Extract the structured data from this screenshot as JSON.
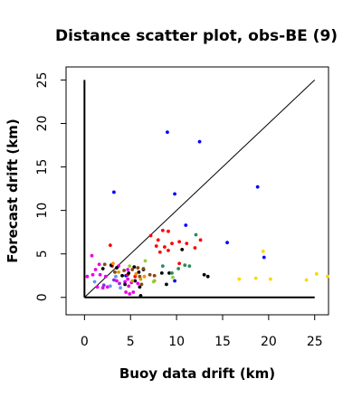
{
  "chart_data": {
    "type": "scatter",
    "title": "Distance scatter plot, obs-BE (9)",
    "xlabel": "Buoy data drift (km)",
    "ylabel": "Forecast drift (km)",
    "xlim": [
      -2,
      26.5
    ],
    "ylim": [
      -2,
      26.5
    ],
    "x_ticks": [
      0,
      5,
      10,
      15,
      20,
      25
    ],
    "y_ticks": [
      0,
      5,
      10,
      15,
      20,
      25
    ],
    "grid": false,
    "legend": "none",
    "reference_lines": [
      {
        "kind": "diagonal",
        "x": [
          0,
          25
        ],
        "y": [
          0,
          25
        ]
      },
      {
        "kind": "vertical",
        "x": [
          0,
          0
        ],
        "y": [
          0,
          25
        ]
      },
      {
        "kind": "horizontal",
        "x": [
          0,
          25
        ],
        "y": [
          0,
          0
        ]
      }
    ],
    "series": [
      {
        "color": "#0000ff",
        "points": [
          [
            9,
            19
          ],
          [
            12.5,
            17.9
          ],
          [
            3.2,
            12.1
          ],
          [
            9.8,
            11.9
          ],
          [
            18.8,
            12.7
          ],
          [
            11,
            8.3
          ],
          [
            15.5,
            6.3
          ],
          [
            19.5,
            4.6
          ],
          [
            9.8,
            1.9
          ],
          [
            4.5,
            2.5
          ]
        ]
      },
      {
        "color": "#ff0000",
        "points": [
          [
            2.8,
            6
          ],
          [
            7.2,
            7.1
          ],
          [
            8,
            6.6
          ],
          [
            8.5,
            7.7
          ],
          [
            9.1,
            7.6
          ],
          [
            7.8,
            5.9
          ],
          [
            8.7,
            5.8
          ],
          [
            9.5,
            6.2
          ],
          [
            10.3,
            6.4
          ],
          [
            11.1,
            6.2
          ],
          [
            12.6,
            6.6
          ],
          [
            8.2,
            5.2
          ],
          [
            9.1,
            5.4
          ],
          [
            10.3,
            3.9
          ],
          [
            12,
            5.7
          ],
          [
            3,
            3.6
          ],
          [
            4.7,
            2.6
          ],
          [
            5.5,
            2.4
          ]
        ]
      },
      {
        "color": "#e600e6",
        "points": [
          [
            0.3,
            2.4
          ],
          [
            0.9,
            2.6
          ],
          [
            1.2,
            3.2
          ],
          [
            1.7,
            2.6
          ],
          [
            2.3,
            2.4
          ],
          [
            0.8,
            4.8
          ],
          [
            1.6,
            3.8
          ],
          [
            4.7,
            2.1
          ],
          [
            4.4,
            1.8
          ],
          [
            3.5,
            1.9
          ],
          [
            4.8,
            1.3
          ],
          [
            4.5,
            0.6
          ],
          [
            4.9,
            0.4
          ],
          [
            5.3,
            0.6
          ],
          [
            5.1,
            1.7
          ],
          [
            5.8,
            1.6
          ],
          [
            2.5,
            1.2
          ],
          [
            2,
            1.1
          ],
          [
            1.4,
            1.2
          ],
          [
            3.7,
            3.6
          ],
          [
            4.7,
            3.2
          ]
        ]
      },
      {
        "color": "#8a2be2",
        "points": [
          [
            2.1,
            1.4
          ],
          [
            3.2,
            2
          ],
          [
            3.8,
            1.6
          ]
        ]
      },
      {
        "color": "#6495ed",
        "points": [
          [
            1.1,
            1.8
          ],
          [
            2.8,
            1.3
          ],
          [
            3.9,
            1.1
          ],
          [
            3.4,
            2.4
          ]
        ]
      },
      {
        "color": "#000000",
        "points": [
          [
            2,
            3.3
          ],
          [
            2.9,
            3.7
          ],
          [
            3.5,
            3.4
          ],
          [
            4.1,
            2.5
          ],
          [
            4.8,
            2.8
          ],
          [
            5.9,
            2.9
          ],
          [
            6.4,
            3.2
          ],
          [
            5.4,
            3.5
          ],
          [
            8.4,
            2.8
          ],
          [
            9.2,
            2.8
          ],
          [
            8.9,
            1.5
          ],
          [
            10.6,
            5.5
          ],
          [
            13,
            2.6
          ],
          [
            13.4,
            2.4
          ],
          [
            6.1,
            0.2
          ],
          [
            6,
            1.2
          ],
          [
            4.4,
            1.5
          ],
          [
            5.5,
            1.9
          ]
        ]
      },
      {
        "color": "#8b4513",
        "points": [
          [
            2.2,
            3.8
          ],
          [
            3.3,
            2.9
          ],
          [
            4.3,
            3.1
          ],
          [
            5.8,
            3.4
          ],
          [
            6.4,
            3.3
          ],
          [
            7.1,
            2.6
          ],
          [
            6.2,
            1.5
          ],
          [
            6,
            2.4
          ],
          [
            5.2,
            3.2
          ],
          [
            7.6,
            2.5
          ]
        ]
      },
      {
        "color": "#c9a100",
        "points": [
          [
            5.2,
            1.9
          ],
          [
            6.1,
            2.1
          ],
          [
            7.6,
            1.9
          ],
          [
            3.7,
            2.9
          ]
        ]
      },
      {
        "color": "#ffd700",
        "points": [
          [
            16.8,
            2.1
          ],
          [
            18.6,
            2.2
          ],
          [
            20.2,
            2.1
          ],
          [
            19.4,
            5.3
          ],
          [
            25.2,
            2.7
          ],
          [
            24.1,
            2
          ],
          [
            26.4,
            2.4
          ]
        ]
      },
      {
        "color": "#2e8b57",
        "points": [
          [
            8.5,
            3.6
          ],
          [
            10.2,
            3.3
          ],
          [
            10.9,
            3.7
          ],
          [
            9.5,
            2.8
          ],
          [
            12.1,
            7.2
          ],
          [
            11.4,
            3.6
          ]
        ]
      },
      {
        "color": "#9acd32",
        "points": [
          [
            9.6,
            2.3
          ],
          [
            7.5,
            1.8
          ],
          [
            6.6,
            4.2
          ],
          [
            4.9,
            3.6
          ]
        ]
      },
      {
        "color": "#ff8c00",
        "points": [
          [
            3.1,
            3.9
          ],
          [
            5.6,
            2.7
          ],
          [
            6.5,
            2.4
          ]
        ]
      }
    ]
  }
}
